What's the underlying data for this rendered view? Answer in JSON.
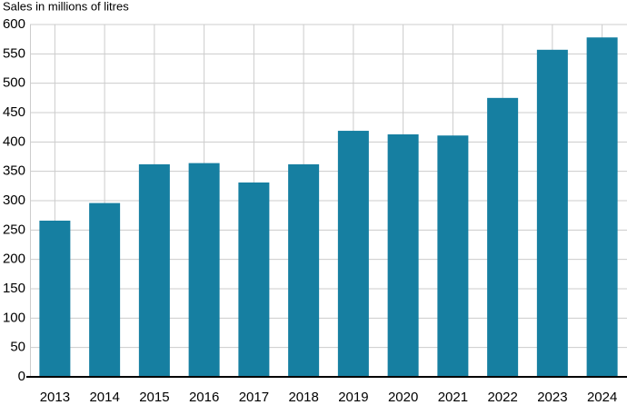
{
  "chart_data": {
    "type": "bar",
    "title": "Sales in millions of litres",
    "categories": [
      "2013",
      "2014",
      "2015",
      "2016",
      "2017",
      "2018",
      "2019",
      "2020",
      "2021",
      "2022",
      "2023",
      "2024"
    ],
    "values": [
      266,
      296,
      362,
      364,
      331,
      362,
      419,
      413,
      411,
      475,
      557,
      578
    ],
    "color": "#167fa1",
    "ylim": [
      0,
      600
    ],
    "yticks": [
      0,
      50,
      100,
      150,
      200,
      250,
      300,
      350,
      400,
      450,
      500,
      550,
      600
    ],
    "grid": true
  }
}
